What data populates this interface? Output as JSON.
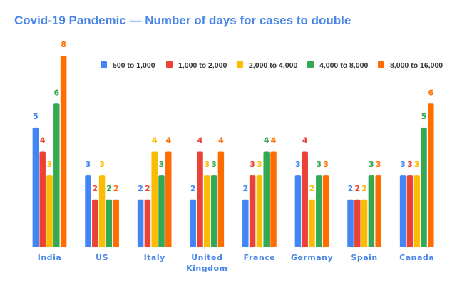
{
  "chart_data": {
    "type": "bar",
    "title": "Covid-19 Pandemic — Number of days for cases to double",
    "xlabel": "",
    "ylabel": "",
    "ylim": [
      0,
      8
    ],
    "grid": false,
    "legend_position": "top-right",
    "categories": [
      "India",
      "US",
      "Italy",
      "United Kingdom",
      "France",
      "Germany",
      "Spain",
      "Canada"
    ],
    "category_display": [
      [
        "India"
      ],
      [
        "US"
      ],
      [
        "Italy"
      ],
      [
        "United",
        "Kingdom"
      ],
      [
        "France"
      ],
      [
        "Germany"
      ],
      [
        "Spain"
      ],
      [
        "Canada"
      ]
    ],
    "series": [
      {
        "name": "500 to 1,000",
        "color": "#4285f4",
        "values": [
          5,
          3,
          2,
          2,
          2,
          3,
          2,
          3
        ]
      },
      {
        "name": "1,000 to 2,000",
        "color": "#ea4335",
        "values": [
          4,
          2,
          2,
          4,
          3,
          4,
          2,
          3
        ]
      },
      {
        "name": "2,000 to 4,000",
        "color": "#fbbc04",
        "values": [
          3,
          3,
          4,
          3,
          3,
          2,
          2,
          3
        ]
      },
      {
        "name": "4,000 to 8,000",
        "color": "#34a853",
        "values": [
          6,
          2,
          3,
          3,
          4,
          3,
          3,
          5
        ]
      },
      {
        "name": "8,000 to 16,000",
        "color": "#ff6d01",
        "values": [
          8,
          2,
          4,
          4,
          4,
          3,
          3,
          6
        ]
      }
    ],
    "data_labels": true
  }
}
